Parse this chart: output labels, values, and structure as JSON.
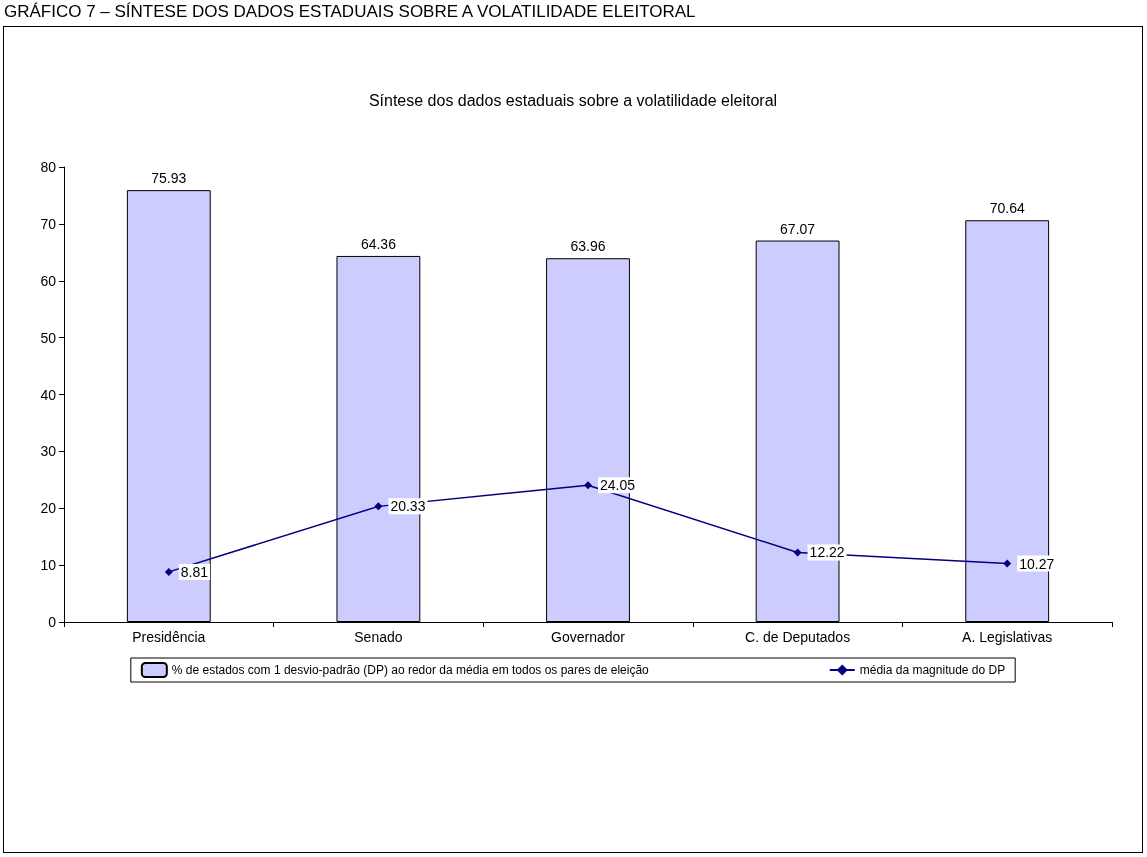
{
  "chart_data": {
    "type": "bar",
    "title": "GRÁFICO 7 – SÍNTESE DOS DADOS ESTADUAIS SOBRE A VOLATILIDADE ELEITORAL",
    "subtitle": "Síntese dos dados estaduais sobre a volatilidade eleitoral",
    "categories": [
      "Presidência",
      "Senado",
      "Governador",
      "C. de Deputados",
      "A. Legislativas"
    ],
    "series": [
      {
        "name": "% de estados com 1 desvio-padrão (DP) ao redor da média em todos os pares de eleição",
        "color": "#ccccff",
        "values": [
          75.93,
          64.36,
          63.96,
          67.07,
          70.64
        ]
      },
      {
        "name": "média da magnitude do DP",
        "type": "line",
        "color": "#000080",
        "values": [
          8.81,
          20.33,
          24.05,
          12.22,
          10.27
        ]
      }
    ],
    "ylim": [
      0,
      80
    ],
    "yticks": [
      0,
      10,
      20,
      30,
      40,
      50,
      60,
      70,
      80
    ],
    "grid": false,
    "legend": "bottom",
    "marker": "diamond",
    "data_labels": true
  }
}
